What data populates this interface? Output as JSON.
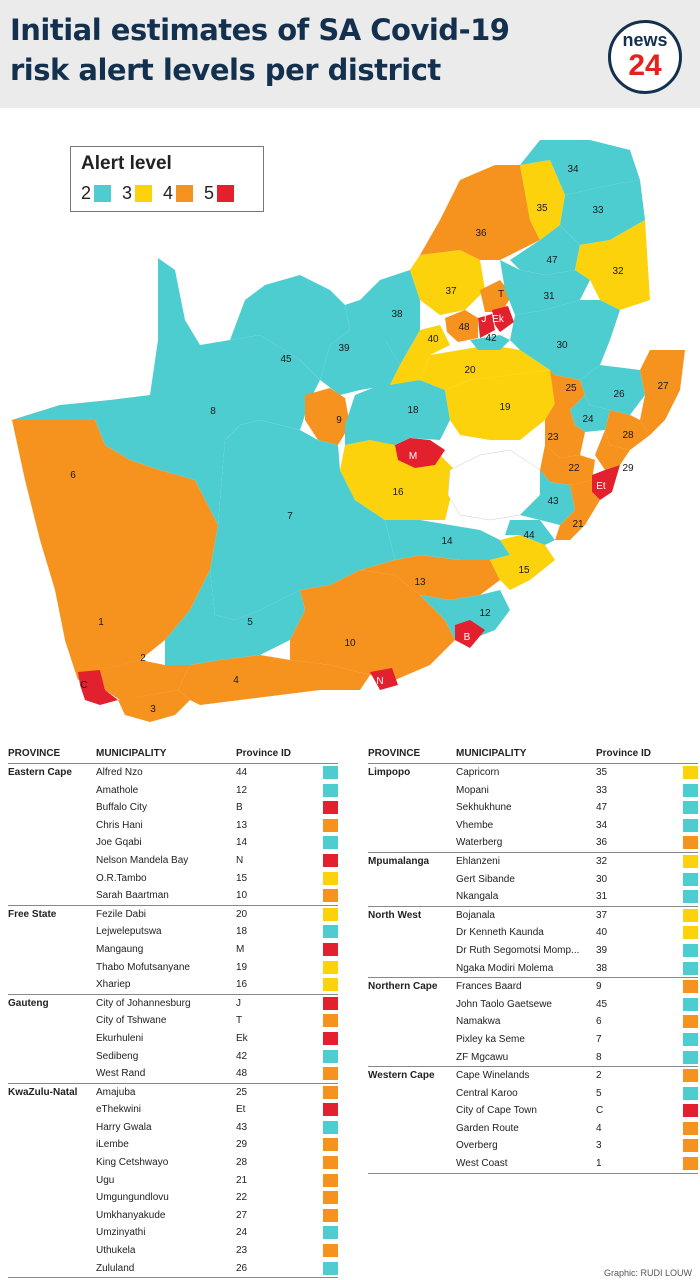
{
  "header": {
    "title_line1": "Initial estimates of SA Covid-19",
    "title_line2": "risk alert levels per district",
    "logo_word": "news",
    "logo_number": "24"
  },
  "colors": {
    "level2": "#4ecdd0",
    "level3": "#fbd20c",
    "level4": "#f6921e",
    "level5": "#e2202e",
    "title": "#13314f"
  },
  "legend": {
    "title": "Alert level",
    "items": [
      {
        "level": "2",
        "color": "#4ecdd0"
      },
      {
        "level": "3",
        "color": "#fbd20c"
      },
      {
        "level": "4",
        "color": "#f6921e"
      },
      {
        "level": "5",
        "color": "#e2202e"
      }
    ]
  },
  "map_labels": [
    "34",
    "35",
    "33",
    "36",
    "32",
    "47",
    "37",
    "T",
    "Ek",
    "J",
    "31",
    "38",
    "48",
    "42",
    "40",
    "30",
    "45",
    "39",
    "20",
    "25",
    "26",
    "27",
    "19",
    "18",
    "8",
    "9",
    "24",
    "28",
    "23",
    "M",
    "22",
    "29",
    "Et",
    "6",
    "16",
    "43",
    "21",
    "7",
    "44",
    "14",
    "15",
    "13",
    "1",
    "5",
    "12",
    "B",
    "10",
    "2",
    "C",
    "4",
    "N",
    "3"
  ],
  "table_headers": {
    "province": "PROVINCE",
    "municipality": "MUNICIPALITY",
    "id": "Province ID"
  },
  "left_table": [
    {
      "province": "Eastern Cape",
      "rows": [
        {
          "municipality": "Alfred Nzo",
          "id": "44",
          "level": 2
        },
        {
          "municipality": "Amathole",
          "id": "12",
          "level": 2
        },
        {
          "municipality": "Buffalo City",
          "id": "B",
          "level": 5
        },
        {
          "municipality": "Chris Hani",
          "id": "13",
          "level": 4
        },
        {
          "municipality": "Joe Gqabi",
          "id": "14",
          "level": 2
        },
        {
          "municipality": "Nelson Mandela Bay",
          "id": "N",
          "level": 5
        },
        {
          "municipality": "O.R.Tambo",
          "id": "15",
          "level": 3
        },
        {
          "municipality": "Sarah Baartman",
          "id": "10",
          "level": 4
        }
      ]
    },
    {
      "province": "Free State",
      "rows": [
        {
          "municipality": "Fezile Dabi",
          "id": "20",
          "level": 3
        },
        {
          "municipality": "Lejweleputswa",
          "id": "18",
          "level": 2
        },
        {
          "municipality": "Mangaung",
          "id": "M",
          "level": 5
        },
        {
          "municipality": "Thabo Mofutsanyane",
          "id": "19",
          "level": 3
        },
        {
          "municipality": "Xhariep",
          "id": "16",
          "level": 3
        }
      ]
    },
    {
      "province": "Gauteng",
      "rows": [
        {
          "municipality": "City of Johannesburg",
          "id": "J",
          "level": 5
        },
        {
          "municipality": "City of Tshwane",
          "id": "T",
          "level": 4
        },
        {
          "municipality": "Ekurhuleni",
          "id": "Ek",
          "level": 5
        },
        {
          "municipality": "Sedibeng",
          "id": "42",
          "level": 2
        },
        {
          "municipality": "West Rand",
          "id": "48",
          "level": 4
        }
      ]
    },
    {
      "province": "KwaZulu-Natal",
      "rows": [
        {
          "municipality": "Amajuba",
          "id": "25",
          "level": 4
        },
        {
          "municipality": "eThekwini",
          "id": "Et",
          "level": 5
        },
        {
          "municipality": "Harry Gwala",
          "id": "43",
          "level": 2
        },
        {
          "municipality": "iLembe",
          "id": "29",
          "level": 4
        },
        {
          "municipality": "King Cetshwayo",
          "id": "28",
          "level": 4
        },
        {
          "municipality": "Ugu",
          "id": "21",
          "level": 4
        },
        {
          "municipality": "Umgungundlovu",
          "id": "22",
          "level": 4
        },
        {
          "municipality": "Umkhanyakude",
          "id": "27",
          "level": 4
        },
        {
          "municipality": "Umzinyathi",
          "id": "24",
          "level": 2
        },
        {
          "municipality": "Uthukela",
          "id": "23",
          "level": 4
        },
        {
          "municipality": "Zululand",
          "id": "26",
          "level": 2
        }
      ]
    }
  ],
  "right_table": [
    {
      "province": "Limpopo",
      "rows": [
        {
          "municipality": "Capricorn",
          "id": "35",
          "level": 3
        },
        {
          "municipality": "Mopani",
          "id": "33",
          "level": 2
        },
        {
          "municipality": "Sekhukhune",
          "id": "47",
          "level": 2
        },
        {
          "municipality": "Vhembe",
          "id": "34",
          "level": 2
        },
        {
          "municipality": "Waterberg",
          "id": "36",
          "level": 4
        }
      ]
    },
    {
      "province": "Mpumalanga",
      "rows": [
        {
          "municipality": "Ehlanzeni",
          "id": "32",
          "level": 3
        },
        {
          "municipality": "Gert Sibande",
          "id": "30",
          "level": 2
        },
        {
          "municipality": "Nkangala",
          "id": "31",
          "level": 2
        }
      ]
    },
    {
      "province": "North West",
      "rows": [
        {
          "municipality": "Bojanala",
          "id": "37",
          "level": 3
        },
        {
          "municipality": "Dr Kenneth Kaunda",
          "id": "40",
          "level": 3
        },
        {
          "municipality": "Dr Ruth Segomotsi Momp...",
          "id": "39",
          "level": 2
        },
        {
          "municipality": "Ngaka Modiri Molema",
          "id": "38",
          "level": 2
        }
      ]
    },
    {
      "province": "Northern Cape",
      "rows": [
        {
          "municipality": "Frances Baard",
          "id": "9",
          "level": 4
        },
        {
          "municipality": "John Taolo Gaetsewe",
          "id": "45",
          "level": 2
        },
        {
          "municipality": "Namakwa",
          "id": "6",
          "level": 4
        },
        {
          "municipality": "Pixley ka Seme",
          "id": "7",
          "level": 2
        },
        {
          "municipality": "ZF Mgcawu",
          "id": "8",
          "level": 2
        }
      ]
    },
    {
      "province": "Western Cape",
      "rows": [
        {
          "municipality": "Cape Winelands",
          "id": "2",
          "level": 4
        },
        {
          "municipality": "Central Karoo",
          "id": "5",
          "level": 2
        },
        {
          "municipality": "City of Cape Town",
          "id": "C",
          "level": 5
        },
        {
          "municipality": "Garden Route",
          "id": "4",
          "level": 4
        },
        {
          "municipality": "Overberg",
          "id": "3",
          "level": 4
        },
        {
          "municipality": "West Coast",
          "id": "1",
          "level": 4
        }
      ]
    }
  ],
  "credit": "Graphic: RUDI LOUW"
}
